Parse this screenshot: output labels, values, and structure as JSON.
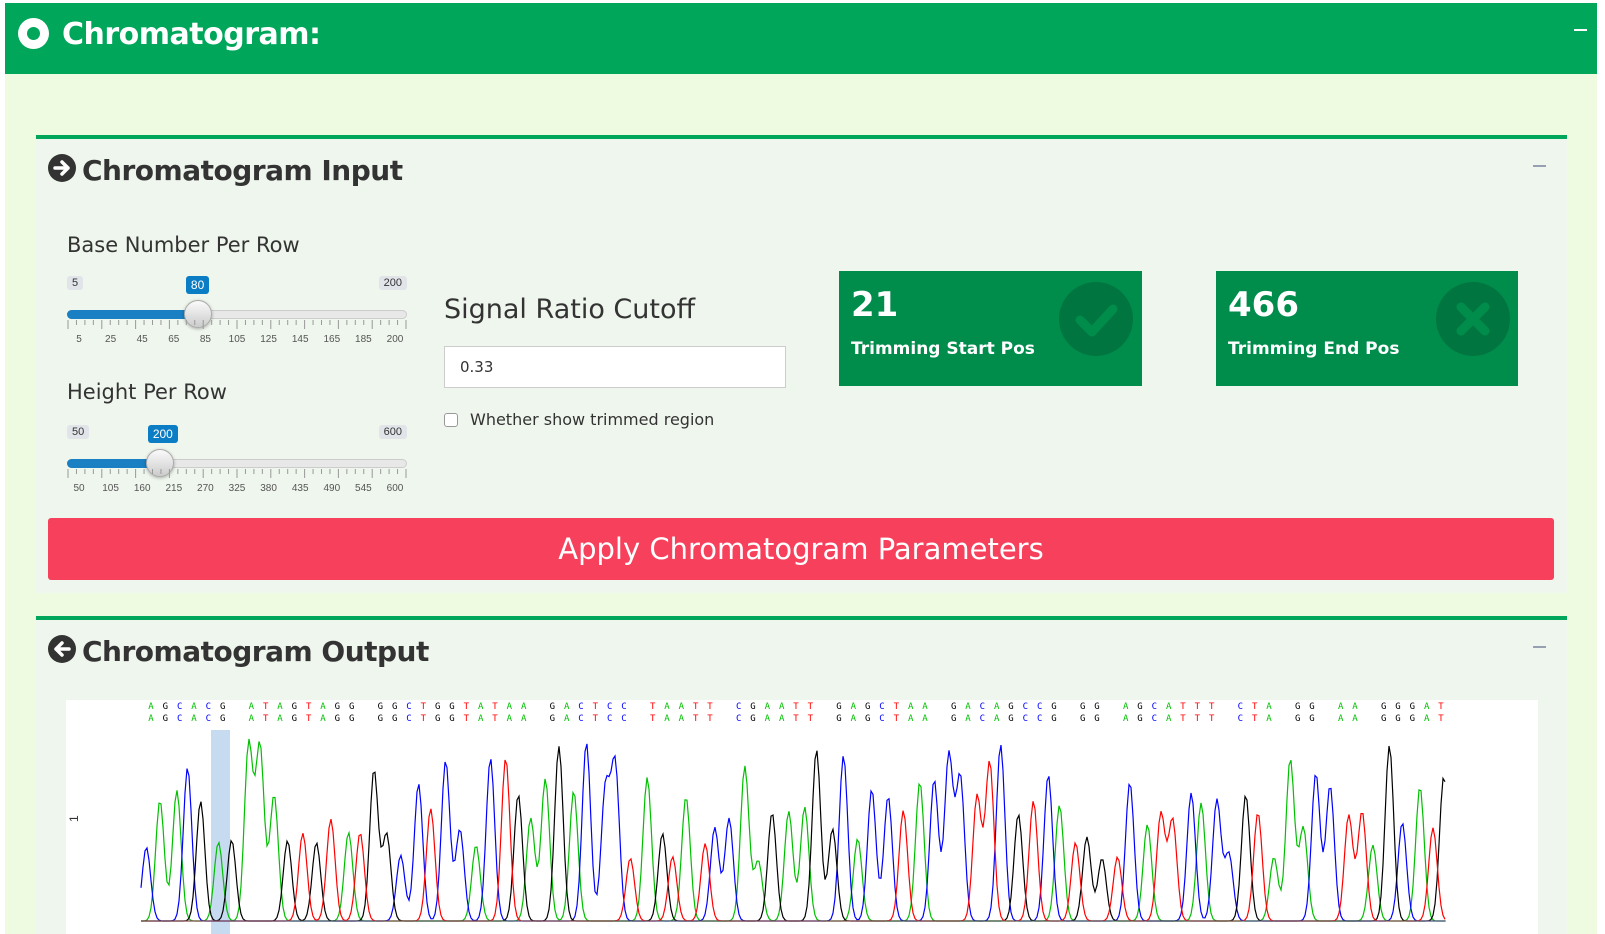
{
  "header": {
    "title": "Chromatogram:"
  },
  "input_box": {
    "title": "Chromatogram Input",
    "base_slider": {
      "label": "Base Number Per Row",
      "min": "5",
      "max": "200",
      "value": "80",
      "fraction": 0.385,
      "tick_labels": [
        "5",
        "25",
        "45",
        "65",
        "85",
        "105",
        "125",
        "145",
        "165",
        "185",
        "200"
      ]
    },
    "height_slider": {
      "label": "Height Per Row",
      "min": "50",
      "max": "600",
      "value": "200",
      "fraction": 0.273,
      "tick_labels": [
        "50",
        "105",
        "160",
        "215",
        "270",
        "325",
        "380",
        "435",
        "490",
        "545",
        "600"
      ]
    },
    "signal_ratio": {
      "label": "Signal Ratio Cutoff",
      "value": "0.33"
    },
    "trimmed_checkbox": {
      "label": "Whether show trimmed region",
      "checked": false
    },
    "start_box": {
      "value": "21",
      "label": "Trimming Start Pos",
      "icon": "check-icon"
    },
    "end_box": {
      "value": "466",
      "label": "Trimming End Pos",
      "icon": "times-icon"
    },
    "apply_button": "Apply Chromatogram Parameters"
  },
  "output_box": {
    "title": "Chromatogram Output",
    "row_label": "1",
    "base_calls": "AGCACG ATAGTAGG GGCTGGTATAA GACTCC TAATT CGAATT GAGCTAA GACAGCCG GG AGCATTT CTA GG AA GGGAT",
    "colors": {
      "A": "#00c000",
      "C": "#0000ff",
      "G": "#000000",
      "T": "#ff0000"
    }
  },
  "colors": {
    "accent": "#00a65a",
    "valuebox": "#008d4c",
    "apply": "#f7415c",
    "slider": "#1a7fc3"
  }
}
